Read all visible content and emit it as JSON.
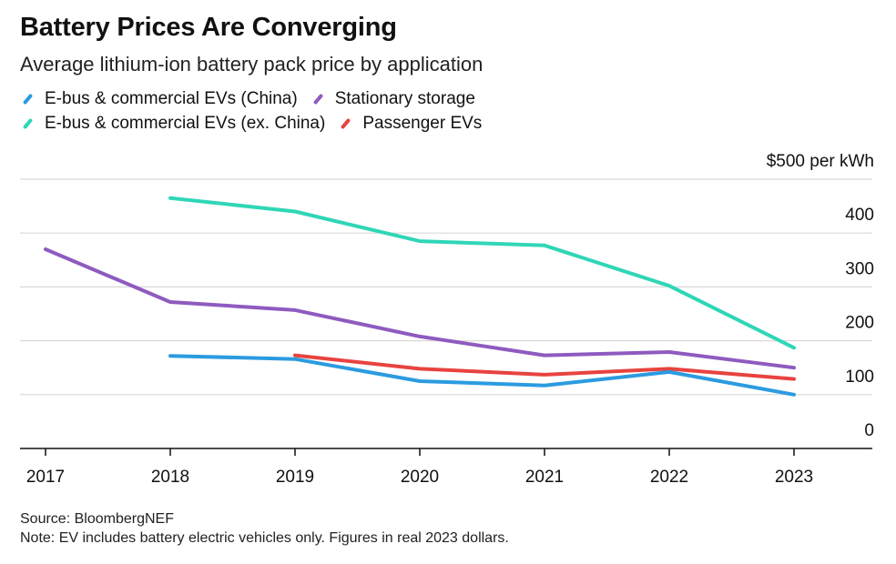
{
  "header": {
    "title": "Battery Prices Are Converging",
    "subtitle": "Average lithium-ion battery pack price by application"
  },
  "legend": [
    {
      "label": "E-bus & commercial EVs (China)",
      "color": "#2b9be0"
    },
    {
      "label": "Stationary storage",
      "color": "#8e5bbf"
    },
    {
      "label": "E-bus & commercial EVs (ex. China)",
      "color": "#2fd6b7"
    },
    {
      "label": "Passenger EVs",
      "color": "#e8433f"
    }
  ],
  "footer": {
    "source": "Source: BloombergNEF",
    "note": "Note: EV includes battery electric vehicles only. Figures in real 2023 dollars."
  },
  "chart_data": {
    "type": "line",
    "title": "Battery Prices Are Converging",
    "subtitle": "Average lithium-ion battery pack price by application",
    "x": [
      2017,
      2018,
      2019,
      2020,
      2021,
      2022,
      2023
    ],
    "ylim": [
      0,
      500
    ],
    "y_ticks": [
      {
        "value": 500,
        "label": "$500 per kWh"
      },
      {
        "value": 400,
        "label": "400"
      },
      {
        "value": 300,
        "label": "300"
      },
      {
        "value": 200,
        "label": "200"
      },
      {
        "value": 100,
        "label": "100"
      },
      {
        "value": 0,
        "label": "0"
      }
    ],
    "grid": true,
    "series": [
      {
        "name": "E-bus & commercial EVs (ex. China)",
        "color": "#2fd6b7",
        "x": [
          2018,
          2019,
          2020,
          2021,
          2022,
          2023
        ],
        "values": [
          465,
          440,
          385,
          377,
          302,
          187
        ]
      },
      {
        "name": "Stationary storage",
        "color": "#8e5bbf",
        "x": [
          2017,
          2018,
          2019,
          2020,
          2021,
          2022,
          2023
        ],
        "values": [
          370,
          272,
          257,
          208,
          173,
          179,
          150
        ]
      },
      {
        "name": "Passenger EVs",
        "color": "#e8433f",
        "x": [
          2019,
          2020,
          2021,
          2022,
          2023
        ],
        "values": [
          173,
          148,
          137,
          148,
          129
        ]
      },
      {
        "name": "E-bus & commercial EVs (China)",
        "color": "#2b9be0",
        "x": [
          2018,
          2019,
          2020,
          2021,
          2022,
          2023
        ],
        "values": [
          172,
          166,
          125,
          117,
          142,
          100
        ]
      }
    ]
  }
}
